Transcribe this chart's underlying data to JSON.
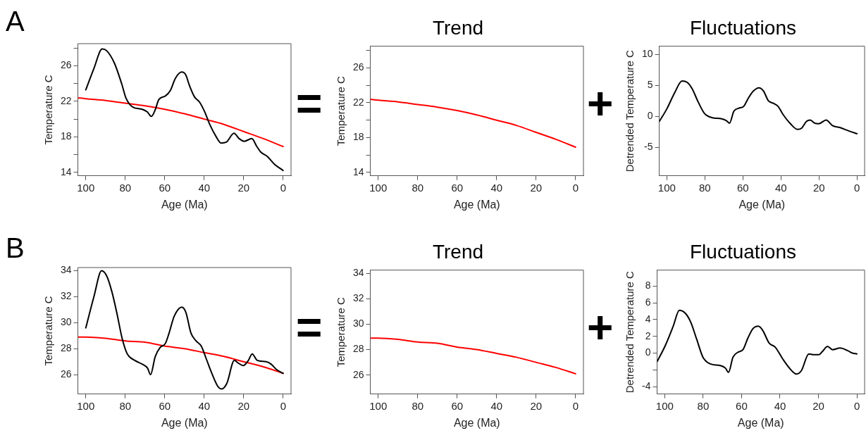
{
  "chart_data": [
    {
      "type": "line",
      "xlabel": "Age (Ma)",
      "ylabel": "Temperature C",
      "annotations": [
        "A"
      ],
      "xlim": [
        104,
        -4
      ],
      "xticks": [
        100,
        80,
        60,
        40,
        20,
        0
      ],
      "ylim": [
        13.6,
        28.5
      ],
      "yticks": [
        14,
        {
          "value": 16,
          "label": null
        },
        18,
        {
          "value": 20,
          "label": null
        },
        22,
        {
          "value": 24,
          "label": null
        },
        26,
        {
          "value": 28,
          "label": null
        }
      ],
      "grid": false,
      "legend": false,
      "marker": "none",
      "line_style": "solid",
      "series": [
        {
          "color": "#000000",
          "x": [
            100,
            95.9,
            91.7,
            89.4,
            85.5,
            81.7,
            79.7,
            76.5,
            71.4,
            68.8,
            66.8,
            64.9,
            63.0,
            59.7,
            57.2,
            54.6,
            51.4,
            49.4,
            47.5,
            44.9,
            42.3,
            39.7,
            37.2,
            33.9,
            31.4,
            28.8,
            24.9,
            22.3,
            19.7,
            15.9,
            13.3,
            11.4,
            8.1,
            4.3,
            0
          ],
          "values": [
            23.3,
            25.7,
            27.9,
            27.7,
            26.3,
            23.9,
            22.4,
            21.4,
            21.1,
            20.8,
            20.3,
            21.0,
            22.2,
            22.6,
            23.2,
            24.6,
            25.3,
            25.0,
            23.8,
            22.5,
            21.9,
            20.8,
            19.4,
            18.0,
            17.3,
            17.4,
            18.4,
            17.8,
            17.5,
            17.8,
            16.9,
            16.3,
            15.8,
            14.9,
            14.2
          ]
        },
        {
          "color": "#ff0000",
          "x": [
            104,
            100,
            90,
            80,
            70,
            60,
            50,
            40,
            30,
            20,
            10,
            0
          ],
          "values": [
            22.4,
            22.3,
            22.1,
            21.8,
            21.5,
            21.1,
            20.6,
            20.0,
            19.4,
            18.6,
            17.8,
            16.9
          ]
        }
      ]
    },
    {
      "type": "line",
      "title": "Trend",
      "xlabel": "Age (Ma)",
      "ylabel": "Temperature C",
      "annotations": [
        "="
      ],
      "xlim": [
        104,
        -4
      ],
      "xticks": [
        100,
        80,
        60,
        40,
        20,
        0
      ],
      "ylim": [
        13.6,
        28.5
      ],
      "yticks": [
        14,
        {
          "value": 16,
          "label": null
        },
        18,
        {
          "value": 20,
          "label": null
        },
        22,
        {
          "value": 24,
          "label": null
        },
        26,
        {
          "value": 28,
          "label": null
        }
      ],
      "grid": false,
      "legend": false,
      "marker": "none",
      "line_style": "solid",
      "series": [
        {
          "color": "#ff0000",
          "x": [
            104,
            100,
            90,
            80,
            70,
            60,
            50,
            40,
            30,
            20,
            10,
            0
          ],
          "values": [
            22.4,
            22.3,
            22.1,
            21.8,
            21.5,
            21.1,
            20.6,
            20.0,
            19.4,
            18.6,
            17.8,
            16.9
          ]
        }
      ]
    },
    {
      "type": "line",
      "title": "Fluctuations",
      "xlabel": "Age (Ma)",
      "ylabel": "Detrended Temperature C",
      "annotations": [
        "+"
      ],
      "xlim": [
        104,
        -4
      ],
      "xticks": [
        100,
        80,
        60,
        40,
        20,
        0
      ],
      "ylim": [
        -9.6,
        11.3
      ],
      "yticks": [
        -5,
        0,
        5,
        10
      ],
      "grid": false,
      "legend": false,
      "marker": "none",
      "line_style": "solid",
      "series": [
        {
          "color": "#000000",
          "x": [
            103.9,
            100,
            95.9,
            92.0,
            89.4,
            86.8,
            83.5,
            80.3,
            76.4,
            71.2,
            68.7,
            67.0,
            64.8,
            62.2,
            59.6,
            57.0,
            54.4,
            51.6,
            49.2,
            46.6,
            44.0,
            41.5,
            38.9,
            35.0,
            31.3,
            29.1,
            26.5,
            24.6,
            22.3,
            20.1,
            16.2,
            12.9,
            9.1,
            3.9,
            0
          ],
          "values": [
            -0.8,
            1.2,
            3.8,
            5.7,
            5.5,
            4.5,
            2.3,
            0.5,
            -0.2,
            -0.4,
            -0.7,
            -1.1,
            0.8,
            1.3,
            1.6,
            3.0,
            4.1,
            4.6,
            4.1,
            2.5,
            2.1,
            1.6,
            0.3,
            -1.2,
            -2.1,
            -1.9,
            -0.8,
            -0.6,
            -1.1,
            -1.2,
            -0.6,
            -1.5,
            -1.8,
            -2.4,
            -2.8
          ]
        }
      ]
    },
    {
      "type": "line",
      "xlabel": "Age (Ma)",
      "ylabel": "Temperature C",
      "annotations": [
        "B"
      ],
      "xlim": [
        104,
        -4
      ],
      "xticks": [
        100,
        80,
        60,
        40,
        20,
        0
      ],
      "ylim": [
        24.5,
        34.25
      ],
      "yticks": [
        26,
        28,
        30,
        32,
        34
      ],
      "grid": false,
      "legend": false,
      "marker": "none",
      "line_style": "solid",
      "series": [
        {
          "color": "#000000",
          "x": [
            100,
            95.9,
            92.0,
            89.4,
            86.8,
            84.2,
            81.6,
            79.0,
            75.2,
            71.3,
            68.7,
            67.2,
            64.8,
            62.3,
            59.7,
            57.8,
            55.2,
            51.3,
            49.3,
            46.7,
            44.1,
            41.5,
            38.9,
            36.4,
            33.1,
            31.2,
            28.6,
            24.7,
            22.8,
            20.2,
            17.6,
            15.7,
            13.1,
            8.5,
            6.0,
            3.4,
            0
          ],
          "values": [
            29.6,
            32.0,
            34.0,
            33.6,
            32.4,
            30.7,
            28.8,
            27.6,
            27.1,
            26.8,
            26.5,
            26.0,
            27.4,
            28.1,
            28.4,
            29.2,
            30.5,
            31.2,
            30.8,
            29.2,
            28.6,
            28.2,
            27.2,
            26.2,
            25.1,
            24.9,
            25.3,
            27.1,
            26.9,
            26.7,
            27.1,
            27.6,
            27.1,
            27.0,
            26.8,
            26.4,
            26.1
          ]
        },
        {
          "color": "#ff0000",
          "x": [
            104,
            100,
            90,
            80,
            70,
            60,
            50,
            40,
            30,
            20,
            10,
            0
          ],
          "values": [
            28.9,
            28.9,
            28.8,
            28.6,
            28.5,
            28.2,
            28.0,
            27.7,
            27.4,
            27.0,
            26.6,
            26.1
          ]
        }
      ]
    },
    {
      "type": "line",
      "title": "Trend",
      "xlabel": "Age (Ma)",
      "ylabel": "Temperature C",
      "annotations": [
        "="
      ],
      "xlim": [
        104,
        -4
      ],
      "xticks": [
        100,
        80,
        60,
        40,
        20,
        0
      ],
      "ylim": [
        24.5,
        34.25
      ],
      "yticks": [
        26,
        28,
        30,
        32,
        34
      ],
      "grid": false,
      "legend": false,
      "marker": "none",
      "line_style": "solid",
      "series": [
        {
          "color": "#ff0000",
          "x": [
            104,
            100,
            90,
            80,
            70,
            60,
            50,
            40,
            30,
            20,
            10,
            0
          ],
          "values": [
            28.9,
            28.9,
            28.8,
            28.6,
            28.5,
            28.2,
            28.0,
            27.7,
            27.4,
            27.0,
            26.6,
            26.1
          ]
        }
      ]
    },
    {
      "type": "line",
      "title": "Fluctuations",
      "xlabel": "Age (Ma)",
      "ylabel": "Detrended Temperature C",
      "annotations": [
        "+"
      ],
      "xlim": [
        104,
        -4
      ],
      "xticks": [
        100,
        80,
        60,
        40,
        20,
        0
      ],
      "ylim": [
        -4.9,
        9.9
      ],
      "yticks": [
        -4,
        {
          "value": -2,
          "label": null
        },
        0,
        2,
        4,
        6,
        8
      ],
      "grid": false,
      "legend": false,
      "marker": "none",
      "line_style": "solid",
      "series": [
        {
          "color": "#000000",
          "x": [
            103.9,
            99.7,
            95.6,
            92.4,
            89.1,
            86.5,
            83.3,
            80.1,
            76.2,
            71.0,
            68.4,
            66.8,
            64.5,
            61.9,
            59.3,
            56.7,
            54.1,
            51.3,
            49.0,
            45.7,
            42.5,
            38.6,
            34.7,
            31.5,
            28.9,
            25.0,
            22.4,
            19.8,
            17.9,
            15.3,
            12.7,
            8.8,
            4.9,
            2.3,
            0
          ],
          "values": [
            -1.0,
            0.9,
            3.2,
            5.1,
            4.7,
            3.7,
            1.6,
            -0.5,
            -1.3,
            -1.5,
            -1.8,
            -2.3,
            -0.5,
            0.1,
            0.4,
            1.8,
            2.9,
            3.2,
            2.7,
            1.2,
            0.7,
            -0.7,
            -1.9,
            -2.5,
            -2.1,
            -0.1,
            -0.2,
            -0.2,
            0.2,
            0.8,
            0.4,
            0.6,
            0.3,
            0.0,
            -0.1
          ]
        }
      ]
    }
  ]
}
